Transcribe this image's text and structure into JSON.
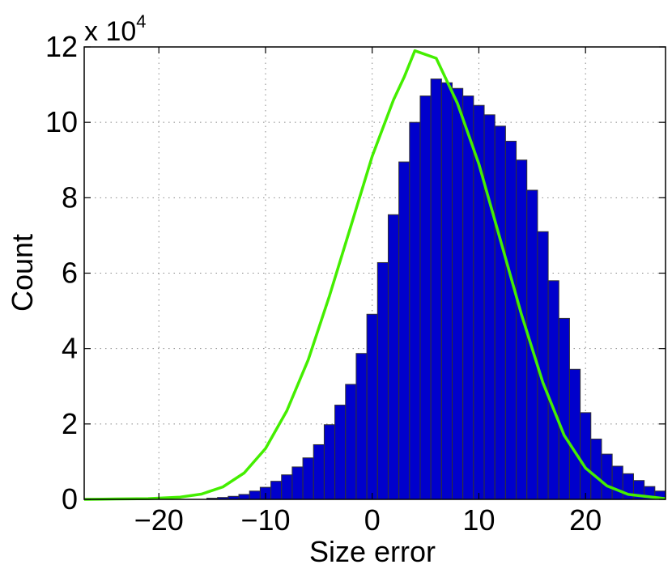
{
  "chart_data": {
    "type": "bar",
    "xlabel": "Size error",
    "ylabel": "Count",
    "exponent_label": {
      "base": "x 10",
      "exp": "4"
    },
    "xlim": [
      -27,
      27.5
    ],
    "ylim": [
      0,
      120000
    ],
    "xticks": [
      -20,
      -10,
      0,
      10,
      20
    ],
    "xtick_labels": [
      "−20",
      "−10",
      "0",
      "10",
      "20"
    ],
    "yticks": [
      0,
      20000,
      40000,
      60000,
      80000,
      100000,
      120000
    ],
    "ytick_labels": [
      "0",
      "2",
      "4",
      "6",
      "8",
      "10",
      "12"
    ],
    "grid": true,
    "bar_color": "#0000cc",
    "bar_edge": "#333333",
    "curve_color": "#44ee00",
    "series": [
      {
        "type": "histogram",
        "bin_width": 1,
        "bin_centers": [
          -15,
          -14,
          -13,
          -12,
          -11,
          -10,
          -9,
          -8,
          -7,
          -6,
          -5,
          -4,
          -3,
          -2,
          -1,
          0,
          1,
          2,
          3,
          4,
          5,
          6,
          7,
          8,
          9,
          10,
          11,
          12,
          13,
          14,
          15,
          16,
          17,
          18,
          19,
          20,
          21,
          22,
          23,
          24,
          25,
          26,
          27
        ],
        "values": [
          300,
          500,
          800,
          1300,
          2200,
          3200,
          4800,
          6500,
          8600,
          11000,
          14500,
          19800,
          25000,
          30500,
          38700,
          49100,
          62800,
          75500,
          89500,
          100000,
          107000,
          111500,
          110500,
          109000,
          107000,
          104500,
          102000,
          99000,
          95000,
          90000,
          82000,
          71000,
          58000,
          48000,
          34500,
          23000,
          16000,
          12000,
          8800,
          6800,
          5000,
          3400,
          2200
        ]
      },
      {
        "type": "line",
        "x": [
          -27,
          -24,
          -21,
          -18,
          -16,
          -14,
          -12,
          -10,
          -8,
          -6,
          -4,
          -2,
          0,
          2,
          3,
          4,
          6,
          8,
          10,
          12,
          14,
          16,
          18,
          20,
          22,
          24,
          27.5
        ],
        "y": [
          0,
          100,
          200,
          600,
          1400,
          3300,
          7000,
          13500,
          23500,
          37000,
          54000,
          72500,
          91000,
          106000,
          112000,
          119000,
          117000,
          105000,
          89000,
          69000,
          49000,
          31000,
          17000,
          8300,
          3600,
          1300,
          200
        ]
      }
    ]
  }
}
